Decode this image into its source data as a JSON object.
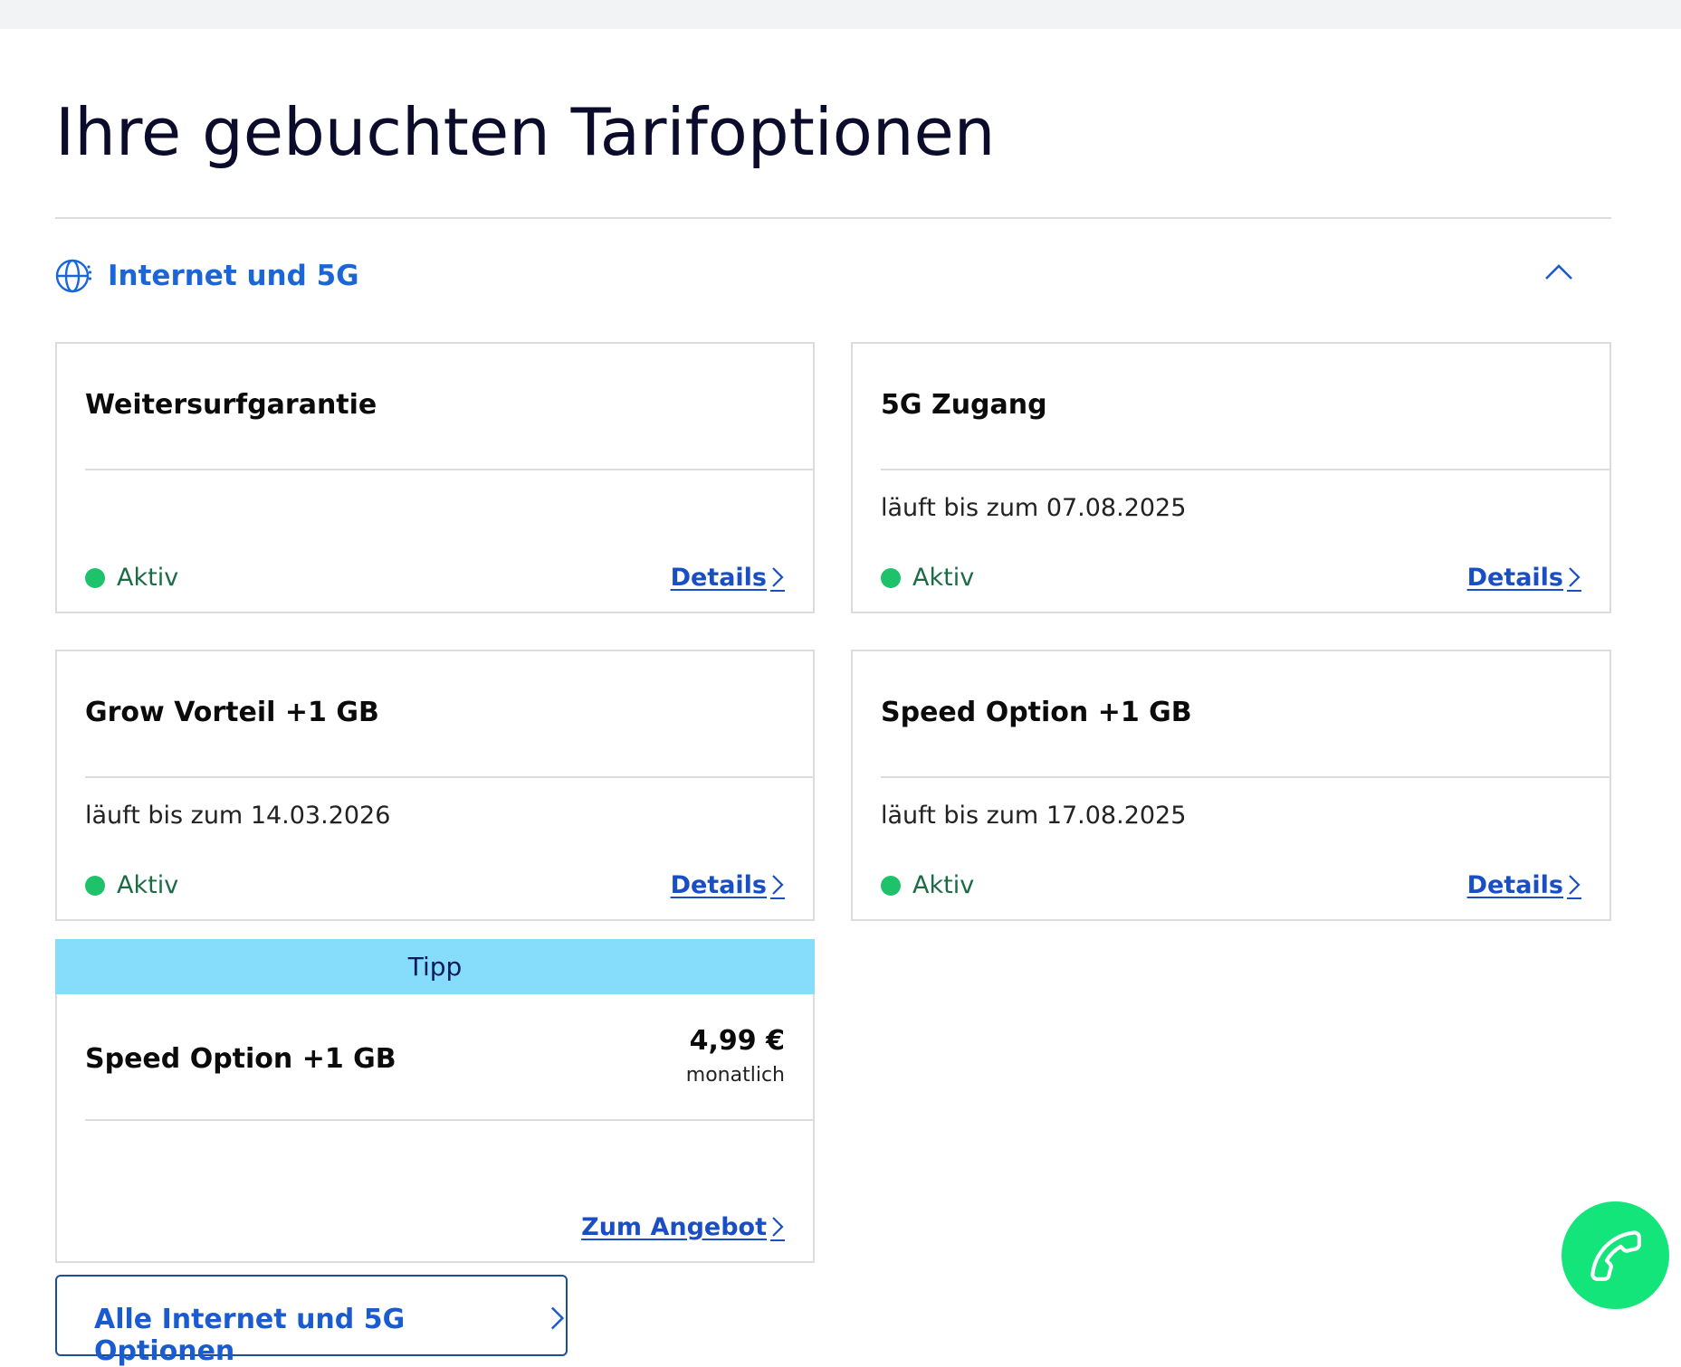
{
  "page": {
    "title": "Ihre gebuchten Tarifoptionen"
  },
  "section": {
    "title": "Internet und 5G",
    "icon": "globe-icon",
    "collapse_icon": "chevron-up-icon",
    "accent_color": "#1a66d8"
  },
  "cards": [
    {
      "title": "Weitersurfgarantie",
      "subtitle": "",
      "status": "Aktiv",
      "link": "Details"
    },
    {
      "title": "5G Zugang",
      "subtitle": "läuft bis zum 07.08.2025",
      "status": "Aktiv",
      "link": "Details"
    },
    {
      "title": "Grow Vorteil +1 GB",
      "subtitle": "läuft bis zum 14.03.2026",
      "status": "Aktiv",
      "link": "Details"
    },
    {
      "title": "Speed Option +1 GB",
      "subtitle": "läuft bis zum 17.08.2025",
      "status": "Aktiv",
      "link": "Details"
    }
  ],
  "tip": {
    "badge": "Tipp",
    "title": "Speed Option +1 GB",
    "price": "4,99 €",
    "period": "monatlich",
    "link": "Zum Angebot",
    "badge_color": "#86dcfb"
  },
  "all_options_button": {
    "label": "Alle Internet und 5G Optionen"
  },
  "call_button": {
    "icon": "phone-icon",
    "color": "#13e57a"
  },
  "status_color": "#1ec26b"
}
